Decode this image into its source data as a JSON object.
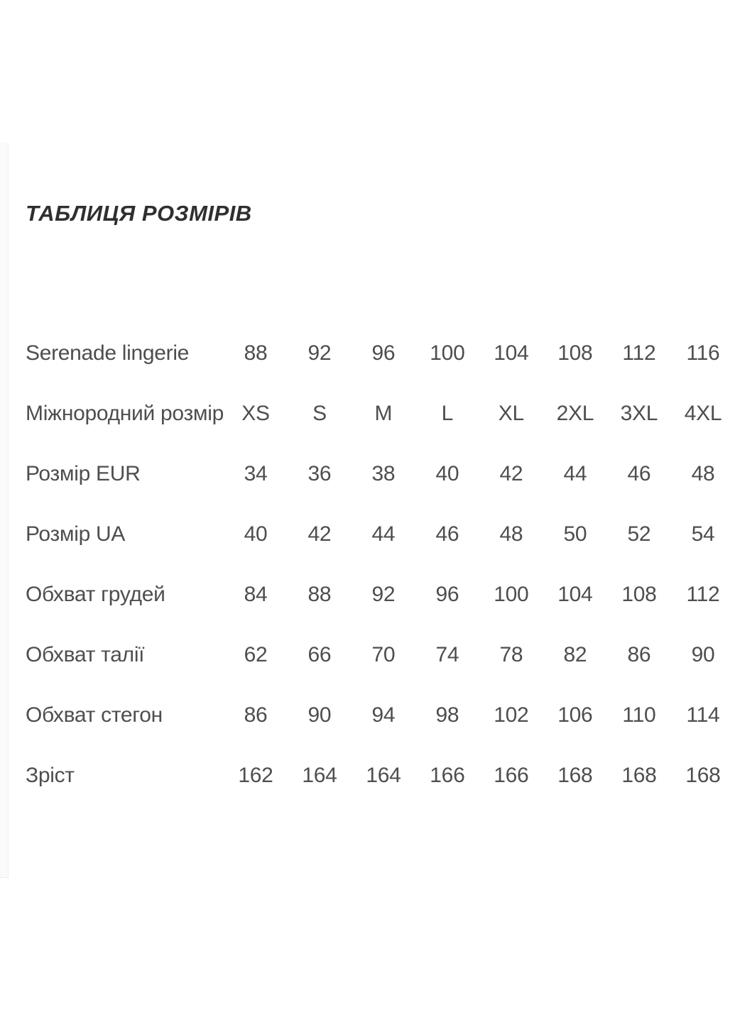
{
  "page": {
    "title": "ТАБЛИЦЯ РОЗМІРІВ"
  },
  "size_table": {
    "rows": [
      {
        "label": "Serenade lingerie",
        "values": [
          "88",
          "92",
          "96",
          "100",
          "104",
          "108",
          "112",
          "116"
        ]
      },
      {
        "label": "Міжнородний розмір",
        "values": [
          "XS",
          "S",
          "M",
          "L",
          "XL",
          "2XL",
          "3XL",
          "4XL"
        ]
      },
      {
        "label": "Розмір EUR",
        "values": [
          "34",
          "36",
          "38",
          "40",
          "42",
          "44",
          "46",
          "48"
        ]
      },
      {
        "label": "Розмір UA",
        "values": [
          "40",
          "42",
          "44",
          "46",
          "48",
          "50",
          "52",
          "54"
        ]
      },
      {
        "label": "Обхват грудей",
        "values": [
          "84",
          "88",
          "92",
          "96",
          "100",
          "104",
          "108",
          "112"
        ]
      },
      {
        "label": "Обхват талії",
        "values": [
          "62",
          "66",
          "70",
          "74",
          "78",
          "82",
          "86",
          "90"
        ]
      },
      {
        "label": "Обхват стегон",
        "values": [
          "86",
          "90",
          "94",
          "98",
          "102",
          "106",
          "110",
          "114"
        ]
      },
      {
        "label": "Зріст",
        "values": [
          "162",
          "164",
          "164",
          "166",
          "166",
          "168",
          "168",
          "168"
        ]
      }
    ]
  },
  "colors": {
    "background": "#ffffff",
    "title_text": "#2f2f2f",
    "table_text": "#4e4e4e",
    "left_strip": "#fafafa"
  }
}
